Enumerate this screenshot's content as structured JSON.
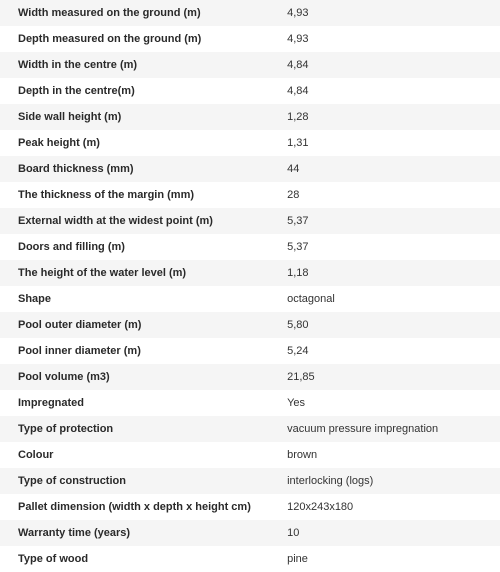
{
  "specs": {
    "columns": [
      "label",
      "value"
    ],
    "row_bg_odd": "#f5f5f5",
    "row_bg_even": "#ffffff",
    "label_fontweight": "bold",
    "label_fontsize": 11,
    "value_fontsize": 11,
    "text_color": "#333333",
    "rows": [
      {
        "label": "Width measured on the ground (m)",
        "value": "4,93"
      },
      {
        "label": "Depth measured on the ground (m)",
        "value": "4,93"
      },
      {
        "label": "Width in the centre (m)",
        "value": "4,84"
      },
      {
        "label": "Depth in the centre(m)",
        "value": "4,84"
      },
      {
        "label": "Side wall height (m)",
        "value": "1,28"
      },
      {
        "label": "Peak height (m)",
        "value": "1,31"
      },
      {
        "label": "Board thickness (mm)",
        "value": "44"
      },
      {
        "label": "The thickness of the margin (mm)",
        "value": "28"
      },
      {
        "label": "External width at the widest point (m)",
        "value": "5,37"
      },
      {
        "label": "Doors and filling (m)",
        "value": "5,37"
      },
      {
        "label": "The height of the water level (m)",
        "value": "1,18"
      },
      {
        "label": "Shape",
        "value": "octagonal"
      },
      {
        "label": "Pool outer diameter (m)",
        "value": "5,80"
      },
      {
        "label": "Pool inner diameter (m)",
        "value": "5,24"
      },
      {
        "label": "Pool volume (m3)",
        "value": "21,85"
      },
      {
        "label": "Impregnated",
        "value": "Yes"
      },
      {
        "label": "Type of protection",
        "value": "vacuum pressure impregnation"
      },
      {
        "label": "Colour",
        "value": "brown"
      },
      {
        "label": "Type of construction",
        "value": "interlocking (logs)"
      },
      {
        "label": "Pallet dimension (width x depth x height cm)",
        "value": "120x243x180"
      },
      {
        "label": "Warranty time (years)",
        "value": "10"
      },
      {
        "label": "Type of wood",
        "value": "pine"
      }
    ]
  }
}
